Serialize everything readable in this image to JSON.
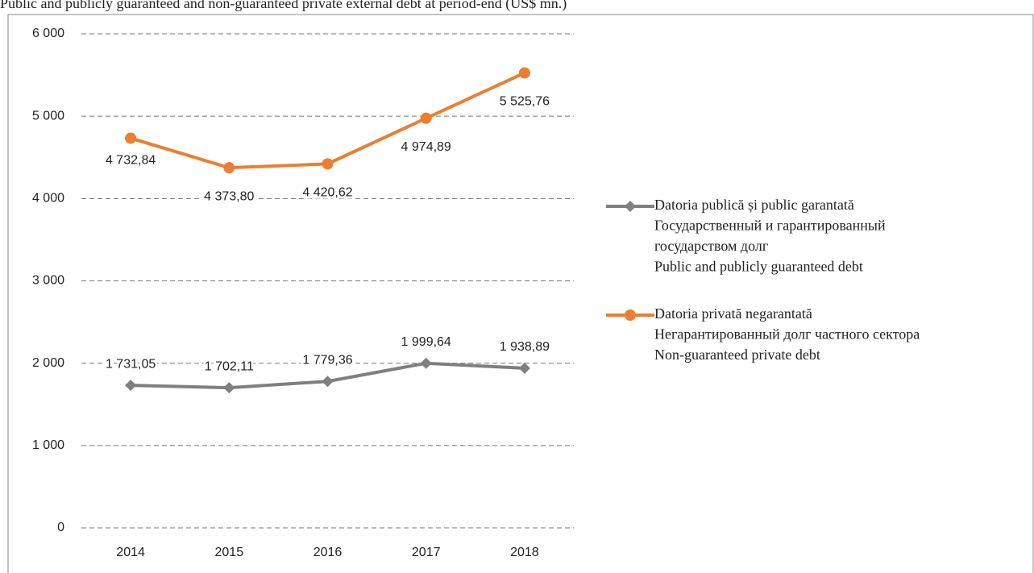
{
  "chart_data": {
    "type": "line",
    "title": "Public and publicly guaranteed and non-guaranteed private external debt at period-end (US$ mn.)",
    "categories": [
      "2014",
      "2015",
      "2016",
      "2017",
      "2018"
    ],
    "series": [
      {
        "name": [
          "Datoria publică și public garantată",
          "Государственный и гарантированный",
          "государством долг",
          "Public and publicly guaranteed debt"
        ],
        "color": "#7f7f7f",
        "marker": "diamond",
        "values": [
          1731.05,
          1702.11,
          1779.36,
          1999.64,
          1938.89
        ],
        "value_labels": [
          "1 731,05",
          "1 702,11",
          "1 779,36",
          "1 999,64",
          "1 938,89"
        ]
      },
      {
        "name": [
          "Datoria privată negarantată",
          "Негарантированный долг частного сектора",
          "Non-guaranteed private debt"
        ],
        "color": "#ed7d31",
        "marker": "circle",
        "values": [
          4732.84,
          4373.8,
          4420.62,
          4974.89,
          5525.76
        ],
        "value_labels": [
          "4 732,84",
          "4 373,80",
          "4 420,62",
          "4 974,89",
          "5 525,76"
        ]
      }
    ],
    "ylim": [
      0,
      6000
    ],
    "yticks": [
      0,
      {
        "value": 1000,
        "label": "1 000"
      },
      {
        "value": 2000,
        "label": "2 000"
      },
      {
        "value": 3000,
        "label": "3 000"
      },
      {
        "value": 4000,
        "label": "4 000"
      },
      {
        "value": 5000,
        "label": "5 000"
      },
      {
        "value": 6000,
        "label": "6 000"
      }
    ],
    "grid": true,
    "legend": "right"
  }
}
